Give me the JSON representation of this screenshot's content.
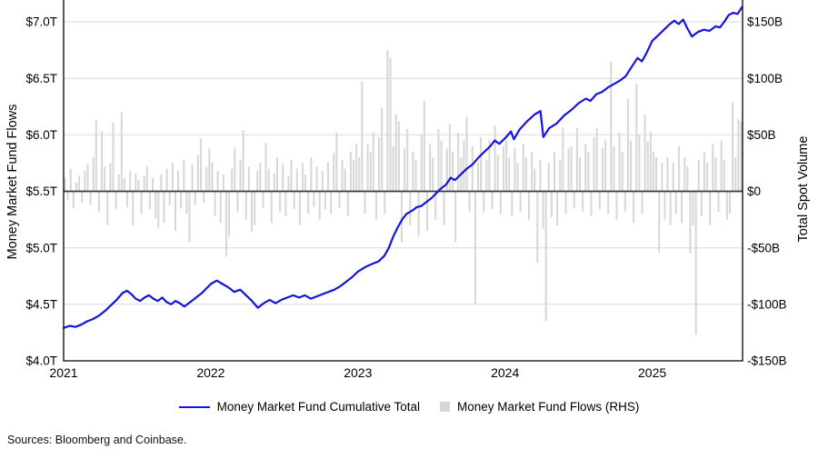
{
  "chart_data": {
    "type": "mixed",
    "title": "",
    "grid": "horizontal",
    "legend_position": "bottom-center",
    "x_axis": {
      "ticks": [
        2021,
        2022,
        2023,
        2024,
        2025
      ],
      "tick_labels": [
        "2021",
        "2022",
        "2023",
        "2024",
        "2025"
      ],
      "range": [
        2021.0,
        2025.614
      ]
    },
    "left_axis": {
      "title": "Money Market Fund Flows",
      "unit": "$T",
      "range": [
        4.0,
        7.0
      ],
      "ticks": [
        7.0,
        6.5,
        6.0,
        5.5,
        5.0,
        4.5,
        4.0
      ],
      "tick_labels": [
        "$7.0T",
        "$6.5T",
        "$6.0T",
        "$5.5T",
        "$5.0T",
        "$4.5T",
        "$4.0T"
      ]
    },
    "right_axis": {
      "title": "Total Spot Volume",
      "unit": "$B",
      "range": [
        -150,
        150
      ],
      "ticks": [
        150,
        100,
        50,
        0,
        -50,
        -100,
        -150
      ],
      "tick_labels": [
        "$150B",
        "$100B",
        "$50B",
        "$0",
        "-$50B",
        "-$100B",
        "-$150B"
      ]
    },
    "series": [
      {
        "name": "Money Market Fund Cumulative Total",
        "type": "line",
        "axis": "left",
        "unit": "$T",
        "color": "#1414dd",
        "points": [
          [
            2021.0,
            4.29
          ],
          [
            2021.04,
            4.31
          ],
          [
            2021.08,
            4.3
          ],
          [
            2021.12,
            4.32
          ],
          [
            2021.16,
            4.35
          ],
          [
            2021.2,
            4.37
          ],
          [
            2021.24,
            4.4
          ],
          [
            2021.28,
            4.44
          ],
          [
            2021.32,
            4.49
          ],
          [
            2021.36,
            4.54
          ],
          [
            2021.4,
            4.6
          ],
          [
            2021.43,
            4.62
          ],
          [
            2021.46,
            4.59
          ],
          [
            2021.49,
            4.55
          ],
          [
            2021.52,
            4.53
          ],
          [
            2021.55,
            4.56
          ],
          [
            2021.58,
            4.58
          ],
          [
            2021.61,
            4.55
          ],
          [
            2021.64,
            4.53
          ],
          [
            2021.67,
            4.56
          ],
          [
            2021.7,
            4.52
          ],
          [
            2021.73,
            4.5
          ],
          [
            2021.76,
            4.53
          ],
          [
            2021.79,
            4.51
          ],
          [
            2021.82,
            4.48
          ],
          [
            2021.85,
            4.51
          ],
          [
            2021.88,
            4.54
          ],
          [
            2021.91,
            4.57
          ],
          [
            2021.94,
            4.6
          ],
          [
            2021.97,
            4.64
          ],
          [
            2022.0,
            4.68
          ],
          [
            2022.04,
            4.71
          ],
          [
            2022.08,
            4.68
          ],
          [
            2022.12,
            4.65
          ],
          [
            2022.16,
            4.61
          ],
          [
            2022.2,
            4.63
          ],
          [
            2022.24,
            4.58
          ],
          [
            2022.28,
            4.53
          ],
          [
            2022.32,
            4.47
          ],
          [
            2022.36,
            4.51
          ],
          [
            2022.4,
            4.54
          ],
          [
            2022.44,
            4.51
          ],
          [
            2022.48,
            4.54
          ],
          [
            2022.52,
            4.56
          ],
          [
            2022.56,
            4.58
          ],
          [
            2022.6,
            4.56
          ],
          [
            2022.64,
            4.58
          ],
          [
            2022.68,
            4.55
          ],
          [
            2022.72,
            4.57
          ],
          [
            2022.76,
            4.59
          ],
          [
            2022.8,
            4.61
          ],
          [
            2022.84,
            4.63
          ],
          [
            2022.88,
            4.66
          ],
          [
            2022.92,
            4.7
          ],
          [
            2022.96,
            4.74
          ],
          [
            2023.0,
            4.79
          ],
          [
            2023.05,
            4.83
          ],
          [
            2023.1,
            4.86
          ],
          [
            2023.14,
            4.88
          ],
          [
            2023.18,
            4.93
          ],
          [
            2023.21,
            5.0
          ],
          [
            2023.24,
            5.1
          ],
          [
            2023.27,
            5.18
          ],
          [
            2023.3,
            5.25
          ],
          [
            2023.33,
            5.3
          ],
          [
            2023.37,
            5.33
          ],
          [
            2023.4,
            5.36
          ],
          [
            2023.43,
            5.37
          ],
          [
            2023.46,
            5.4
          ],
          [
            2023.5,
            5.44
          ],
          [
            2023.53,
            5.48
          ],
          [
            2023.56,
            5.52
          ],
          [
            2023.6,
            5.56
          ],
          [
            2023.63,
            5.62
          ],
          [
            2023.66,
            5.6
          ],
          [
            2023.7,
            5.65
          ],
          [
            2023.74,
            5.7
          ],
          [
            2023.78,
            5.74
          ],
          [
            2023.82,
            5.8
          ],
          [
            2023.86,
            5.85
          ],
          [
            2023.9,
            5.9
          ],
          [
            2023.93,
            5.95
          ],
          [
            2023.96,
            5.92
          ],
          [
            2024.0,
            5.97
          ],
          [
            2024.04,
            6.03
          ],
          [
            2024.06,
            5.96
          ],
          [
            2024.1,
            6.05
          ],
          [
            2024.15,
            6.12
          ],
          [
            2024.2,
            6.18
          ],
          [
            2024.24,
            6.21
          ],
          [
            2024.26,
            5.98
          ],
          [
            2024.3,
            6.06
          ],
          [
            2024.35,
            6.1
          ],
          [
            2024.4,
            6.17
          ],
          [
            2024.45,
            6.22
          ],
          [
            2024.5,
            6.28
          ],
          [
            2024.55,
            6.32
          ],
          [
            2024.58,
            6.3
          ],
          [
            2024.62,
            6.36
          ],
          [
            2024.66,
            6.38
          ],
          [
            2024.7,
            6.42
          ],
          [
            2024.74,
            6.45
          ],
          [
            2024.78,
            6.48
          ],
          [
            2024.82,
            6.52
          ],
          [
            2024.86,
            6.6
          ],
          [
            2024.9,
            6.68
          ],
          [
            2024.93,
            6.65
          ],
          [
            2024.96,
            6.72
          ],
          [
            2025.0,
            6.83
          ],
          [
            2025.04,
            6.88
          ],
          [
            2025.08,
            6.93
          ],
          [
            2025.12,
            6.98
          ],
          [
            2025.15,
            7.01
          ],
          [
            2025.18,
            6.98
          ],
          [
            2025.21,
            7.02
          ],
          [
            2025.24,
            6.94
          ],
          [
            2025.27,
            6.87
          ],
          [
            2025.31,
            6.91
          ],
          [
            2025.35,
            6.93
          ],
          [
            2025.39,
            6.92
          ],
          [
            2025.43,
            6.96
          ],
          [
            2025.46,
            6.95
          ],
          [
            2025.49,
            7.0
          ],
          [
            2025.52,
            7.06
          ],
          [
            2025.55,
            7.08
          ],
          [
            2025.58,
            7.07
          ],
          [
            2025.61,
            7.13
          ]
        ]
      },
      {
        "name": "Money Market Fund Flows (RHS)",
        "type": "bar",
        "axis": "right",
        "unit": "$B",
        "color": "#d6d6d6",
        "frequency": "weekly",
        "start": 2021.0,
        "step": 0.019225,
        "values": [
          12,
          -8,
          20,
          -15,
          8,
          14,
          -10,
          18,
          24,
          -12,
          30,
          63,
          -18,
          53,
          22,
          -30,
          25,
          61,
          -16,
          15,
          70,
          12,
          -14,
          18,
          -30,
          16,
          10,
          -20,
          14,
          22,
          -16,
          12,
          -24,
          -32,
          15,
          -28,
          20,
          -12,
          25,
          -35,
          18,
          -15,
          28,
          -20,
          -45,
          24,
          -12,
          32,
          47,
          -10,
          22,
          38,
          26,
          -22,
          18,
          -28,
          15,
          -58,
          -40,
          20,
          38,
          -18,
          28,
          54,
          -25,
          22,
          -36,
          -30,
          18,
          25,
          -15,
          43,
          20,
          -28,
          16,
          30,
          -18,
          24,
          -22,
          14,
          28,
          -16,
          20,
          -30,
          25,
          15,
          -20,
          30,
          -14,
          22,
          -25,
          18,
          -16,
          26,
          -20,
          34,
          52,
          -15,
          28,
          20,
          -22,
          35,
          28,
          42,
          30,
          97,
          -20,
          42,
          35,
          52,
          -25,
          48,
          74,
          -20,
          125,
          118,
          40,
          68,
          62,
          -45,
          38,
          55,
          -30,
          35,
          28,
          -40,
          50,
          80,
          -35,
          42,
          30,
          -25,
          55,
          45,
          -30,
          38,
          60,
          35,
          -45,
          52,
          30,
          45,
          66,
          -18,
          40,
          -100,
          25,
          48,
          -18,
          28,
          45,
          -16,
          58,
          32,
          -20,
          40,
          45,
          30,
          -22,
          38,
          25,
          -18,
          42,
          30,
          -25,
          35,
          20,
          -63,
          28,
          -33,
          -115,
          25,
          -23,
          35,
          -30,
          28,
          56,
          -20,
          38,
          40,
          -15,
          56,
          30,
          -18,
          42,
          35,
          -22,
          48,
          56,
          -16,
          38,
          45,
          -20,
          115,
          40,
          -25,
          52,
          35,
          -18,
          82,
          45,
          -28,
          95,
          50,
          -20,
          68,
          44,
          53,
          35,
          30,
          -54,
          25,
          -25,
          30,
          -30,
          25,
          -20,
          40,
          -28,
          30,
          22,
          -55,
          -30,
          -127,
          28,
          -22,
          35,
          25,
          -30,
          42,
          30,
          -18,
          45,
          28,
          -25,
          -20,
          79,
          30,
          64,
          62
        ]
      }
    ]
  },
  "legend": {
    "items": [
      {
        "label": "Money Market Fund Cumulative Total",
        "marker": "line",
        "color": "#1414dd"
      },
      {
        "label": "Money Market Fund Flows (RHS)",
        "marker": "square",
        "color": "#d7d7d7"
      }
    ]
  },
  "footer": {
    "sources": "Sources: Bloomberg and Coinbase."
  }
}
